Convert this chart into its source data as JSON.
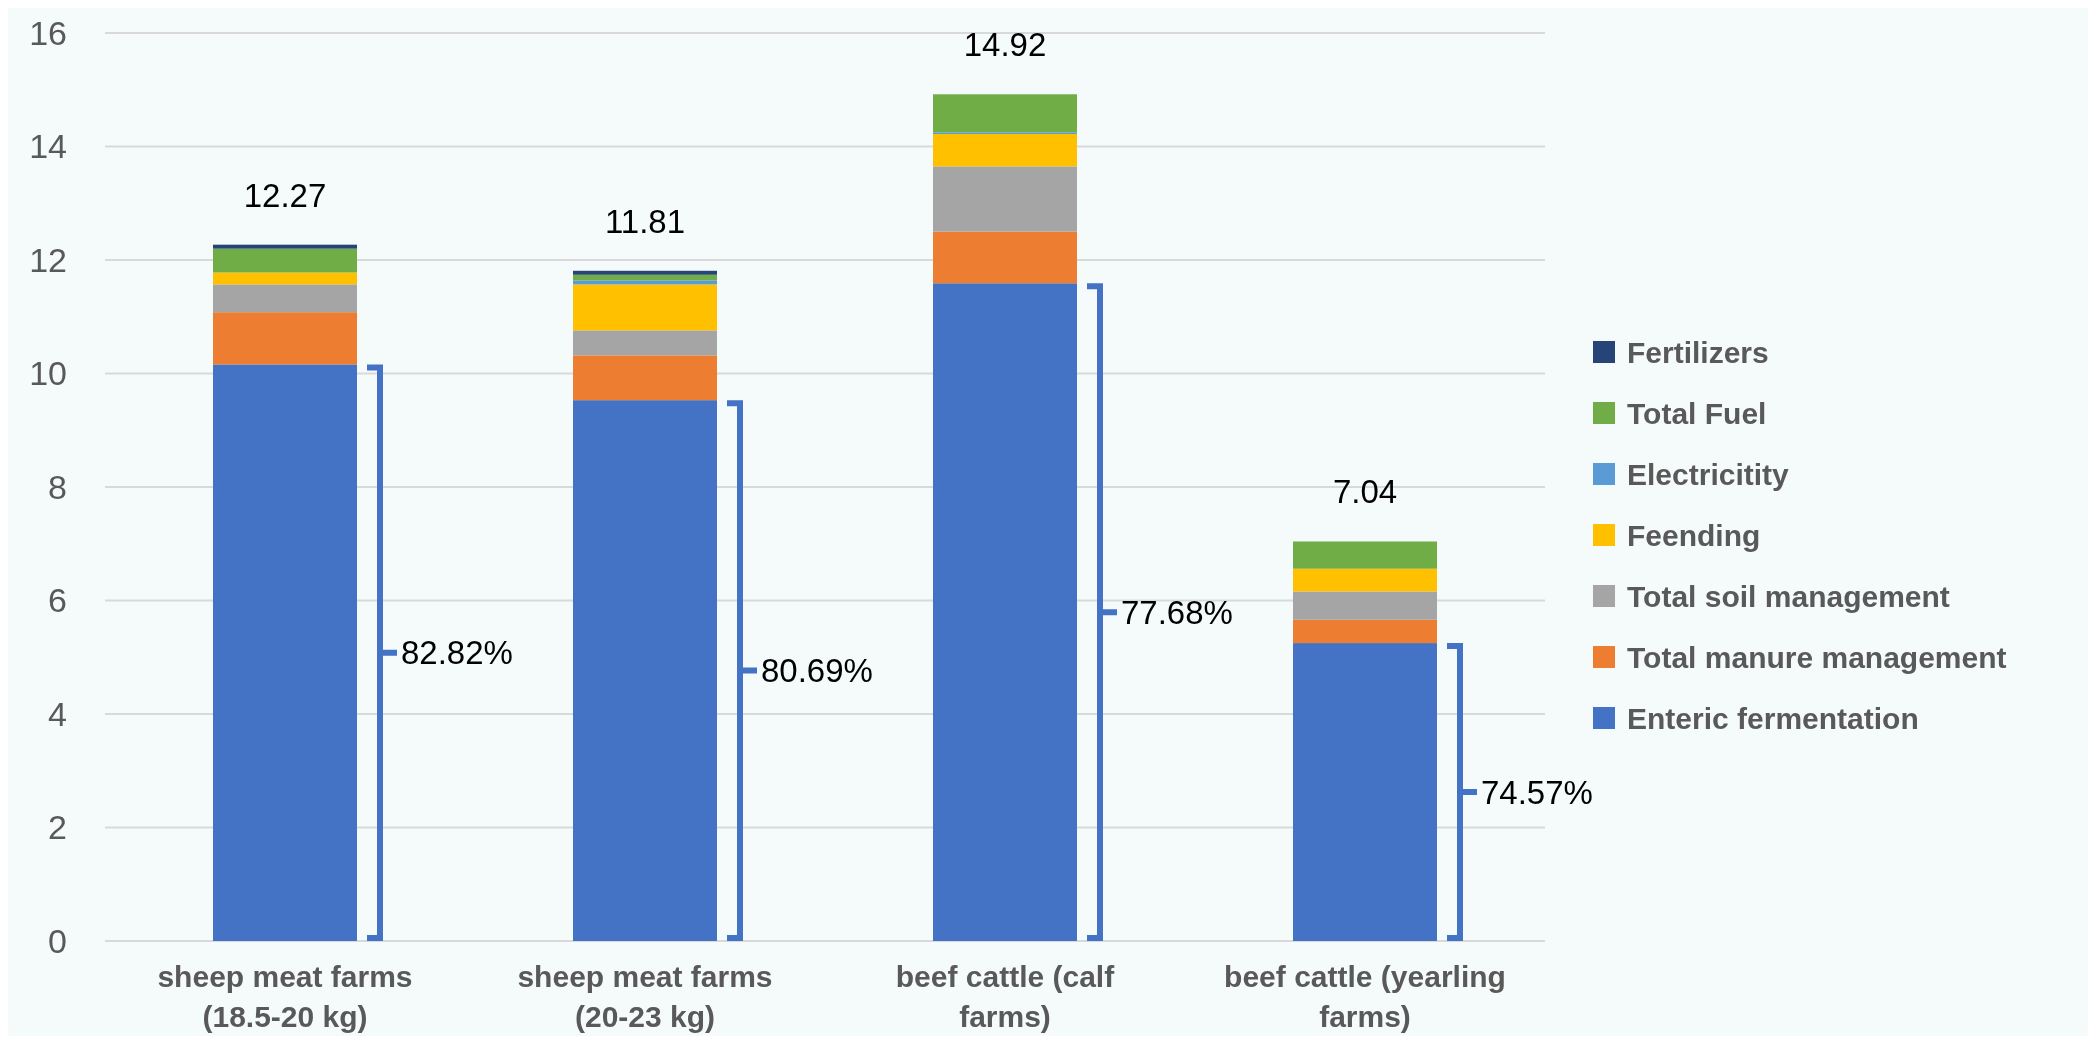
{
  "chart_data": {
    "type": "bar",
    "stacked": true,
    "categories": [
      "sheep meat farms (18.5-20 kg)",
      "sheep meat farms (20-23 kg)",
      "beef cattle (calf farms)",
      "beef cattle (yearling farms)"
    ],
    "series": [
      {
        "name": "Enteric fermentation",
        "color": "#4472c4",
        "values": [
          10.16,
          9.53,
          11.59,
          5.25
        ]
      },
      {
        "name": "Total manure management",
        "color": "#ed7d31",
        "values": [
          0.92,
          0.79,
          0.91,
          0.41
        ]
      },
      {
        "name": "Total soil management",
        "color": "#a5a5a5",
        "values": [
          0.49,
          0.44,
          1.15,
          0.5
        ]
      },
      {
        "name": "Feending",
        "color": "#ffc000",
        "values": [
          0.21,
          0.81,
          0.57,
          0.4
        ]
      },
      {
        "name": "Electricitity",
        "color": "#5b9bd5",
        "values": [
          0,
          0.07,
          0.03,
          0
        ]
      },
      {
        "name": "Total Fuel",
        "color": "#70ad47",
        "values": [
          0.42,
          0.1,
          0.67,
          0.48
        ]
      },
      {
        "name": "Fertilizers",
        "color": "#264478",
        "values": [
          0.07,
          0.07,
          0,
          0
        ]
      }
    ],
    "ylim": [
      0,
      16
    ],
    "yticks": [
      0,
      2,
      4,
      6,
      8,
      10,
      12,
      14,
      16
    ],
    "grid": "y",
    "legend": "right",
    "totals": [
      "12.27",
      "11.81",
      "14.92",
      "7.04"
    ],
    "annotations": [
      "82.82%",
      "80.69%",
      "77.68%",
      "74.57%"
    ]
  }
}
